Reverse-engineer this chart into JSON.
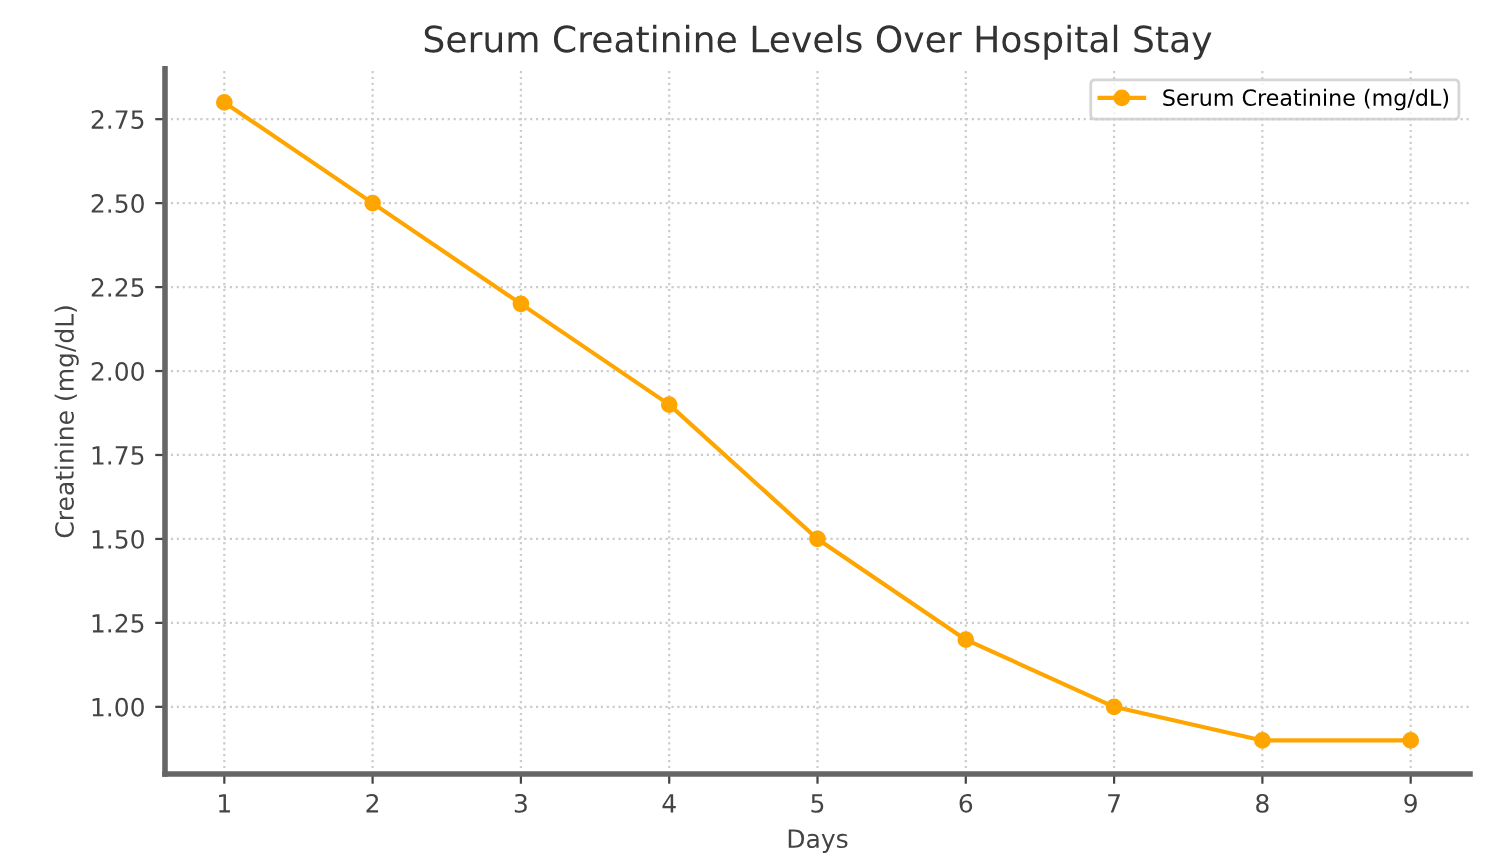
{
  "chart_data": {
    "type": "line",
    "title": "Serum Creatinine Levels Over Hospital Stay",
    "xlabel": "Days",
    "ylabel": "Creatinine (mg/dL)",
    "x": [
      1,
      2,
      3,
      4,
      5,
      6,
      7,
      8,
      9
    ],
    "series": [
      {
        "name": "Serum Creatinine (mg/dL)",
        "color": "#ffa500",
        "values": [
          2.8,
          2.5,
          2.2,
          1.9,
          1.5,
          1.2,
          1.0,
          0.9,
          0.9
        ]
      }
    ],
    "xlim": [
      0.6,
      9.4
    ],
    "xticks": [
      1,
      2,
      3,
      4,
      5,
      6,
      7,
      8,
      9
    ],
    "ylim": [
      0.8,
      2.9
    ],
    "yticks": [
      {
        "value": 1.0,
        "label": "1.00"
      },
      {
        "value": 1.25,
        "label": "1.25"
      },
      {
        "value": 1.5,
        "label": "1.50"
      },
      {
        "value": 1.75,
        "label": "1.75"
      },
      {
        "value": 2.0,
        "label": "2.00"
      },
      {
        "value": 2.25,
        "label": "2.25"
      },
      {
        "value": 2.5,
        "label": "2.50"
      },
      {
        "value": 2.75,
        "label": "2.75"
      }
    ],
    "grid": true,
    "legend": "top right",
    "marker": "circle",
    "line_style": "solid"
  }
}
